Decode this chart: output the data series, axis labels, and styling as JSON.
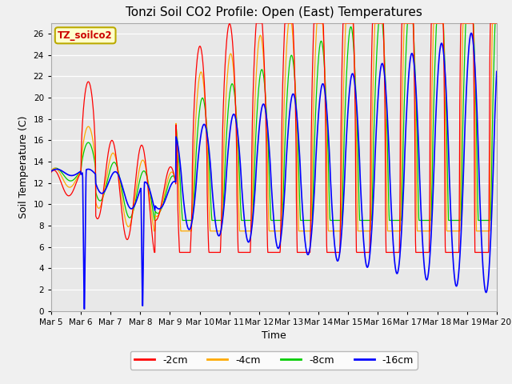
{
  "title": "Tonzi Soil CO2 Profile: Open (East) Temperatures",
  "xlabel": "Time",
  "ylabel": "Soil Temperature (C)",
  "ylim": [
    0,
    27
  ],
  "yticks": [
    0,
    2,
    4,
    6,
    8,
    10,
    12,
    14,
    16,
    18,
    20,
    22,
    24,
    26
  ],
  "legend_label": "TZ_soilco2",
  "series_labels": [
    "-2cm",
    "-4cm",
    "-8cm",
    "-16cm"
  ],
  "series_colors": [
    "#ff0000",
    "#ffaa00",
    "#00cc00",
    "#0000ff"
  ],
  "background_color": "#f0f0f0",
  "plot_bg_color": "#e8e8e8",
  "n_points": 1500
}
